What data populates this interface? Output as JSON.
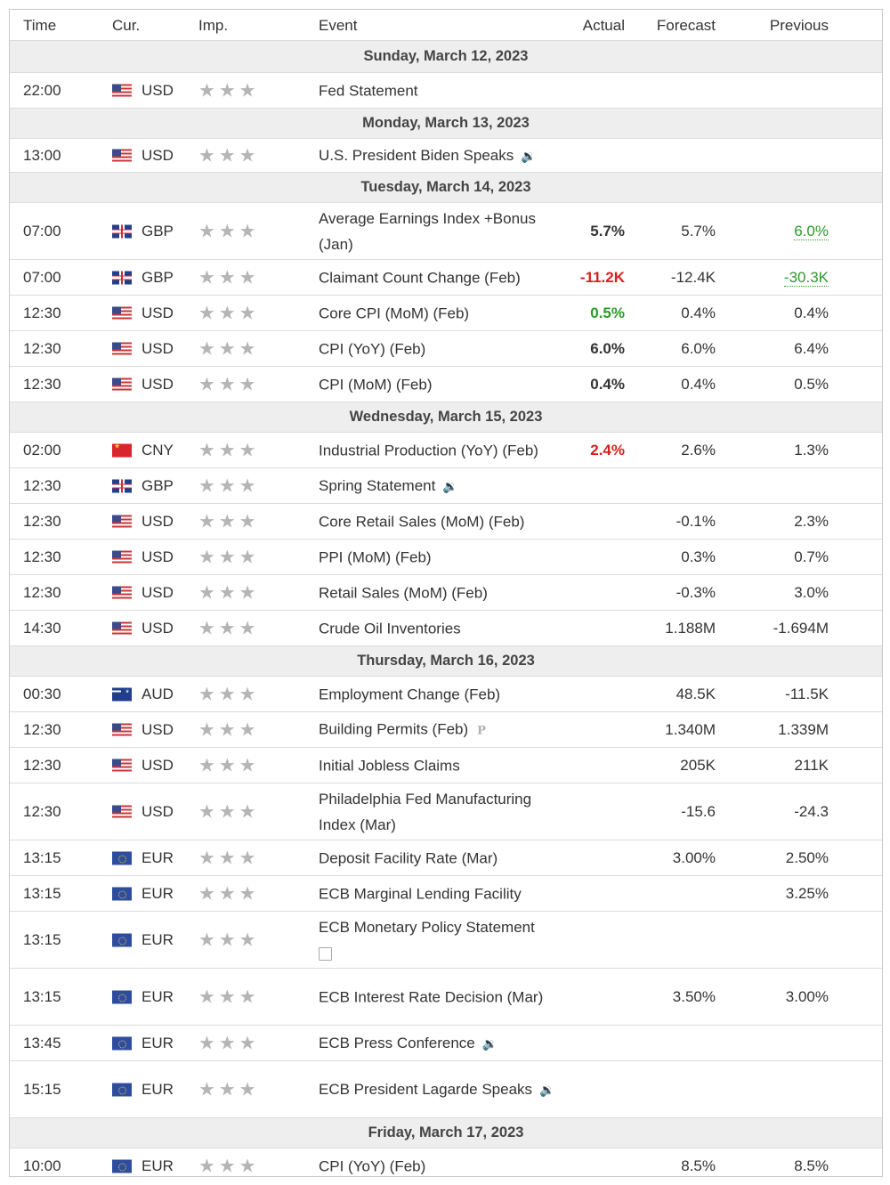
{
  "headers": {
    "time": "Time",
    "currency": "Cur.",
    "importance": "Imp.",
    "event": "Event",
    "actual": "Actual",
    "forecast": "Forecast",
    "previous": "Previous"
  },
  "rows": [
    {
      "type": "day",
      "label": "Sunday, March 12, 2023"
    },
    {
      "type": "event",
      "time": "22:00",
      "flag": "us",
      "currency": "USD",
      "stars": "★★★",
      "event": "Fed Statement",
      "actual": "",
      "forecast": "",
      "previous": ""
    },
    {
      "type": "day",
      "label": "Monday, March 13, 2023"
    },
    {
      "type": "event",
      "time": "13:00",
      "flag": "us",
      "currency": "USD",
      "stars": "★★★",
      "event": "U.S. President Biden Speaks",
      "icon": "speaker-icon",
      "actual": "",
      "forecast": "",
      "previous": ""
    },
    {
      "type": "day",
      "label": "Tuesday, March 14, 2023"
    },
    {
      "type": "event",
      "time": "07:00",
      "flag": "gb",
      "currency": "GBP",
      "stars": "★★★",
      "event": "Average Earnings Index +Bonus (Jan)",
      "actual": "5.7%",
      "forecast": "5.7%",
      "previous": "6.0%",
      "previous_color": "green",
      "previous_dotted": true
    },
    {
      "type": "event",
      "time": "07:00",
      "flag": "gb",
      "currency": "GBP",
      "stars": "★★★",
      "event": "Claimant Count Change (Feb)",
      "actual": "-11.2K",
      "actual_color": "red",
      "forecast": "-12.4K",
      "previous": "-30.3K",
      "previous_color": "green",
      "previous_dotted": true
    },
    {
      "type": "event",
      "time": "12:30",
      "flag": "us",
      "currency": "USD",
      "stars": "★★★",
      "event": "Core CPI (MoM) (Feb)",
      "actual": "0.5%",
      "actual_color": "green",
      "forecast": "0.4%",
      "previous": "0.4%"
    },
    {
      "type": "event",
      "time": "12:30",
      "flag": "us",
      "currency": "USD",
      "stars": "★★★",
      "event": "CPI (YoY) (Feb)",
      "actual": "6.0%",
      "forecast": "6.0%",
      "previous": "6.4%"
    },
    {
      "type": "event",
      "time": "12:30",
      "flag": "us",
      "currency": "USD",
      "stars": "★★★",
      "event": "CPI (MoM) (Feb)",
      "actual": "0.4%",
      "forecast": "0.4%",
      "previous": "0.5%"
    },
    {
      "type": "day",
      "label": "Wednesday, March 15, 2023"
    },
    {
      "type": "event",
      "time": "02:00",
      "flag": "cn",
      "currency": "CNY",
      "stars": "★★★",
      "event": "Industrial Production (YoY) (Feb)",
      "actual": "2.4%",
      "actual_color": "red",
      "forecast": "2.6%",
      "previous": "1.3%"
    },
    {
      "type": "event",
      "time": "12:30",
      "flag": "gb",
      "currency": "GBP",
      "stars": "★★★",
      "event": "Spring Statement",
      "icon": "speaker-icon",
      "actual": "",
      "forecast": "",
      "previous": ""
    },
    {
      "type": "event",
      "time": "12:30",
      "flag": "us",
      "currency": "USD",
      "stars": "★★★",
      "event": "Core Retail Sales (MoM) (Feb)",
      "actual": "",
      "forecast": "-0.1%",
      "previous": "2.3%"
    },
    {
      "type": "event",
      "time": "12:30",
      "flag": "us",
      "currency": "USD",
      "stars": "★★★",
      "event": "PPI (MoM) (Feb)",
      "actual": "",
      "forecast": "0.3%",
      "previous": "0.7%"
    },
    {
      "type": "event",
      "time": "12:30",
      "flag": "us",
      "currency": "USD",
      "stars": "★★★",
      "event": "Retail Sales (MoM) (Feb)",
      "actual": "",
      "forecast": "-0.3%",
      "previous": "3.0%"
    },
    {
      "type": "event",
      "time": "14:30",
      "flag": "us",
      "currency": "USD",
      "stars": "★★★",
      "event": "Crude Oil Inventories",
      "actual": "",
      "forecast": "1.188M",
      "previous": "-1.694M"
    },
    {
      "type": "day",
      "label": "Thursday, March 16, 2023"
    },
    {
      "type": "event",
      "time": "00:30",
      "flag": "au",
      "currency": "AUD",
      "stars": "★★★",
      "event": "Employment Change (Feb)",
      "actual": "",
      "forecast": "48.5K",
      "previous": "-11.5K"
    },
    {
      "type": "event",
      "time": "12:30",
      "flag": "us",
      "currency": "USD",
      "stars": "★★★",
      "event": "Building Permits (Feb)",
      "icon": "preliminary-icon",
      "actual": "",
      "forecast": "1.340M",
      "previous": "1.339M"
    },
    {
      "type": "event",
      "time": "12:30",
      "flag": "us",
      "currency": "USD",
      "stars": "★★★",
      "event": "Initial Jobless Claims",
      "actual": "",
      "forecast": "205K",
      "previous": "211K"
    },
    {
      "type": "event",
      "time": "12:30",
      "flag": "us",
      "currency": "USD",
      "stars": "★★★",
      "event": "Philadelphia Fed Manufacturing Index (Mar)",
      "actual": "",
      "forecast": "-15.6",
      "previous": "-24.3"
    },
    {
      "type": "event",
      "time": "13:15",
      "flag": "eu",
      "currency": "EUR",
      "stars": "★★★",
      "event": "Deposit Facility Rate (Mar)",
      "actual": "",
      "forecast": "3.00%",
      "previous": "2.50%"
    },
    {
      "type": "event",
      "time": "13:15",
      "flag": "eu",
      "currency": "EUR",
      "stars": "★★★",
      "event": "ECB Marginal Lending Facility",
      "actual": "",
      "forecast": "",
      "previous": "3.25%"
    },
    {
      "type": "event",
      "time": "13:15",
      "flag": "eu",
      "currency": "EUR",
      "stars": "★★★",
      "event": "ECB Monetary Policy Statement",
      "icon": "document-icon",
      "actual": "",
      "forecast": "",
      "previous": ""
    },
    {
      "type": "event",
      "time": "13:15",
      "flag": "eu",
      "currency": "EUR",
      "stars": "★★★",
      "event": "ECB Interest Rate Decision (Mar)",
      "actual": "",
      "forecast": "3.50%",
      "previous": "3.00%"
    },
    {
      "type": "event",
      "time": "13:45",
      "flag": "eu",
      "currency": "EUR",
      "stars": "★★★",
      "event": "ECB Press Conference",
      "icon": "speaker-icon",
      "actual": "",
      "forecast": "",
      "previous": ""
    },
    {
      "type": "event",
      "time": "15:15",
      "flag": "eu",
      "currency": "EUR",
      "stars": "★★★",
      "event": "ECB President Lagarde Speaks",
      "icon": "speaker-icon",
      "actual": "",
      "forecast": "",
      "previous": ""
    },
    {
      "type": "day",
      "label": "Friday, March 17, 2023"
    },
    {
      "type": "event",
      "time": "10:00",
      "flag": "eu",
      "currency": "EUR",
      "stars": "★★★",
      "event": "CPI (YoY) (Feb)",
      "actual": "",
      "forecast": "8.5%",
      "previous": "8.5%"
    }
  ],
  "colors": {
    "green": "#2a9c2a",
    "red": "#d91f1f",
    "day_bg": "#eeeeee",
    "star": "#b5b5b5"
  }
}
